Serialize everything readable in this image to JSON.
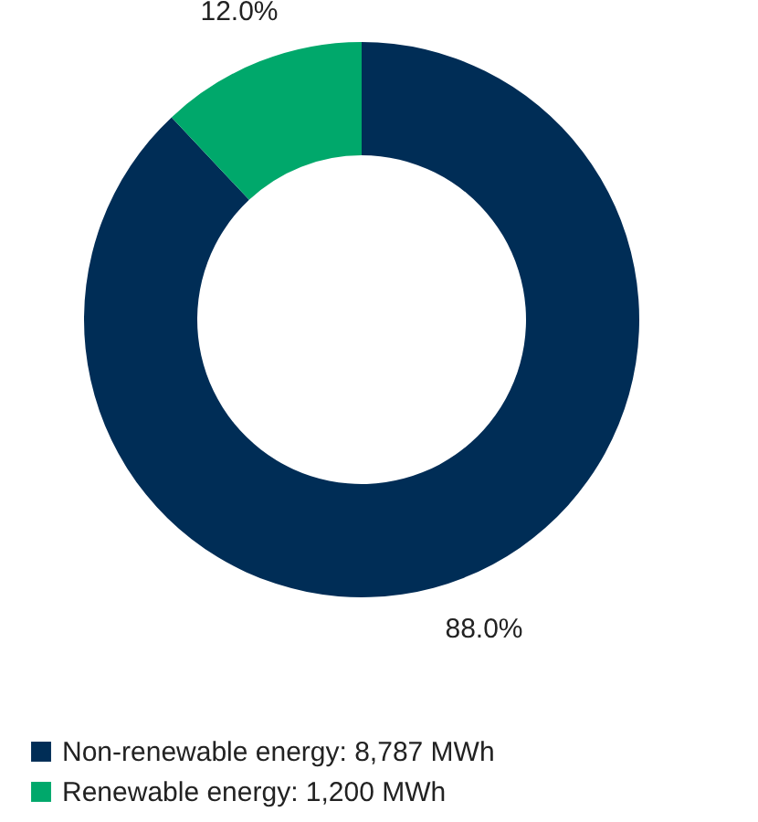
{
  "chart_data": {
    "type": "donut",
    "categories": [
      "Non-renewable energy: 8,787 MWh",
      "Renewable energy: 1,200 MWh"
    ],
    "values": [
      88.0,
      12.0
    ],
    "colors": [
      "#002d56",
      "#00a86b"
    ],
    "value_labels": [
      "88.0%",
      "12.0%"
    ],
    "legend": "bottom left"
  }
}
